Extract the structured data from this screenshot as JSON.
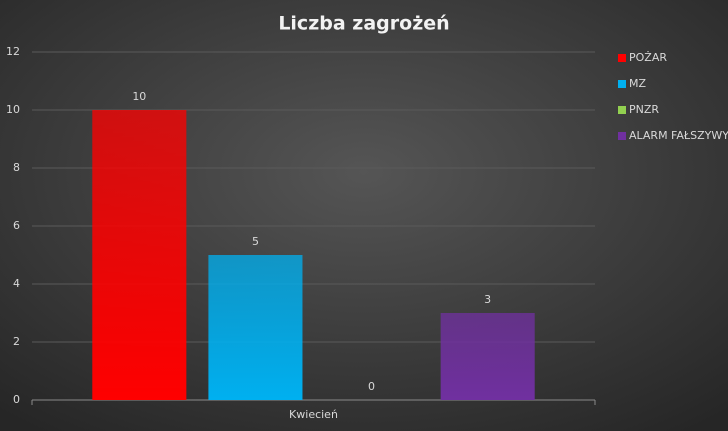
{
  "chart_data": {
    "type": "bar",
    "title": "Liczba zagrożeń",
    "categories": [
      "Kwiecień"
    ],
    "series": [
      {
        "name": "POŻAR",
        "color": "#ff0000",
        "values": [
          10
        ]
      },
      {
        "name": "MZ",
        "color": "#00b0f0",
        "values": [
          5
        ]
      },
      {
        "name": "PNZR",
        "color": "#92d050",
        "values": [
          0
        ]
      },
      {
        "name": "ALARM FAŁSZYWY",
        "color": "#7030a0",
        "values": [
          3
        ]
      }
    ],
    "ylim": [
      0,
      12
    ],
    "yticks": [
      0,
      2,
      4,
      6,
      8,
      10,
      12
    ],
    "grid": true,
    "legend": "right"
  }
}
